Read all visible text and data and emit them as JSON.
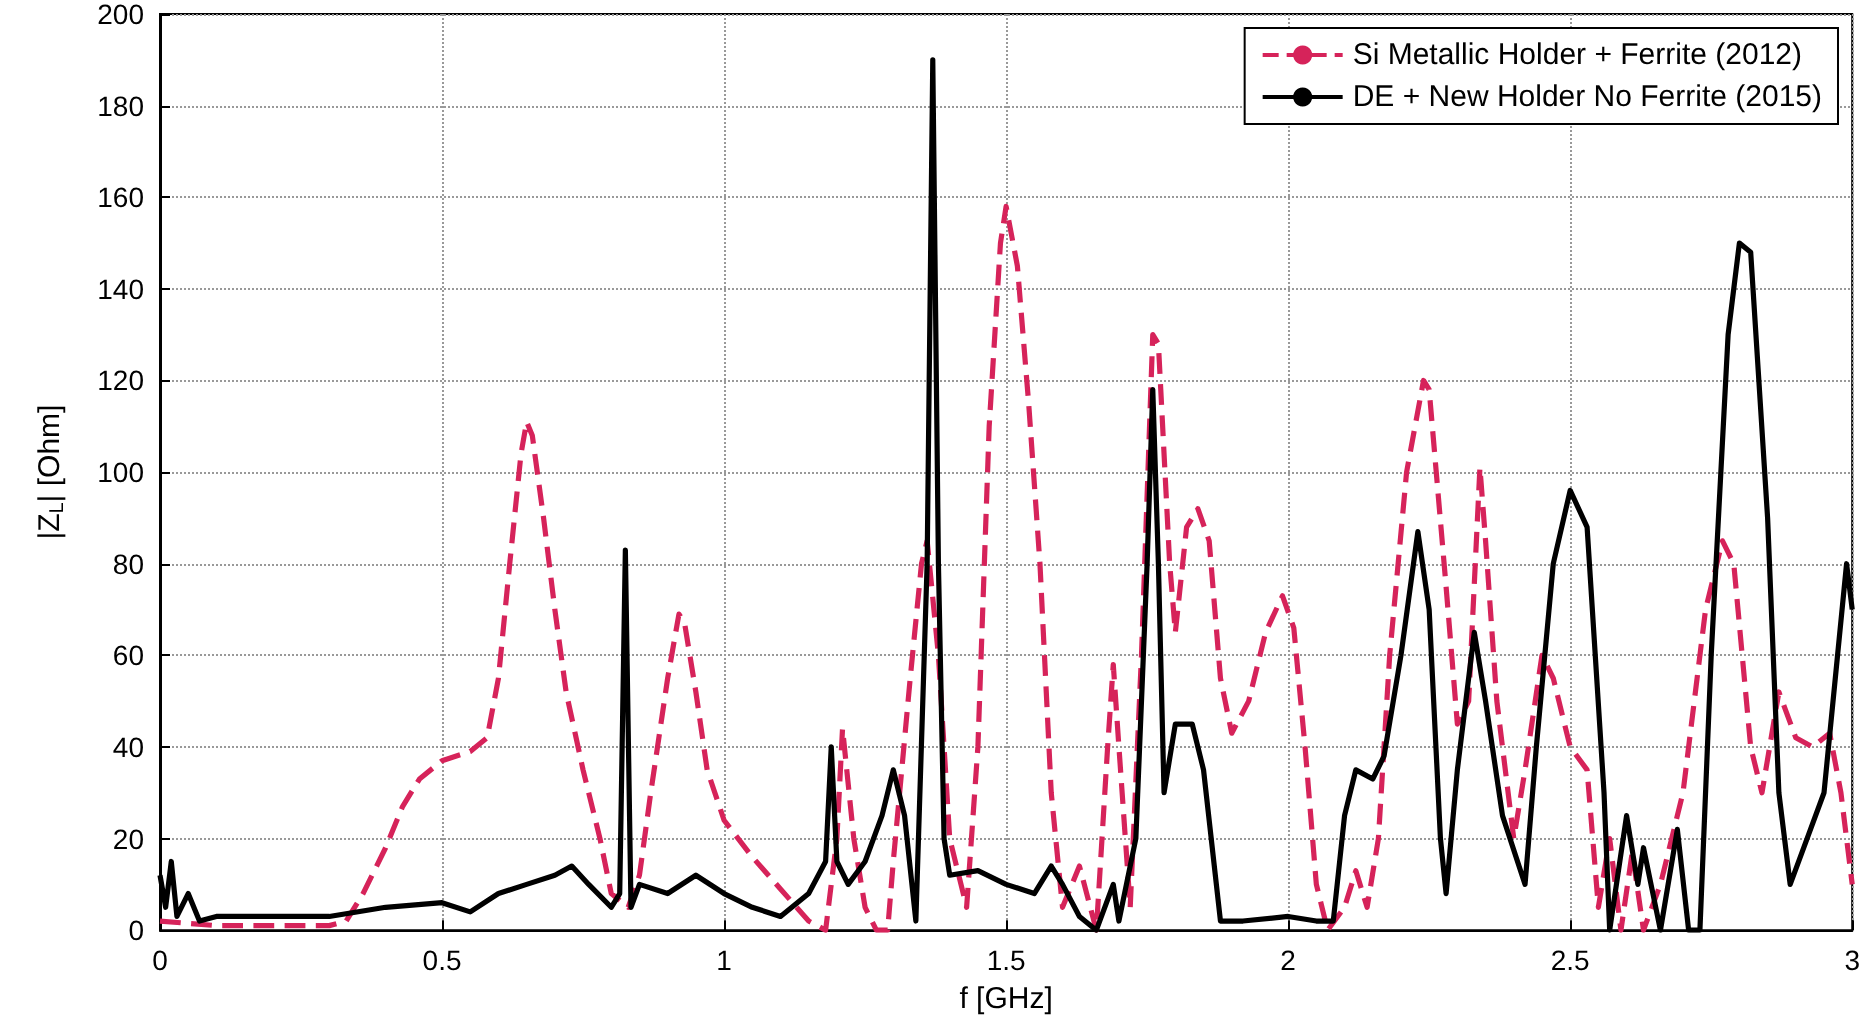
{
  "chart_data": {
    "type": "line",
    "xlabel": "f [GHz]",
    "ylabel": "|Z$_{L}$| [Ohm]",
    "xlim": [
      0,
      3
    ],
    "xticks": [
      0,
      0.5,
      1,
      1.5,
      2,
      2.5,
      3
    ],
    "ylim": [
      0,
      200
    ],
    "yticks": [
      0,
      20,
      40,
      60,
      80,
      100,
      120,
      140,
      160,
      180,
      200
    ],
    "grid": true,
    "legend": "top right",
    "marker": "none",
    "series": [
      {
        "name": "Si Metallic Holder + Ferrite (2012)",
        "color": "#d6235a",
        "line_style": "dashed",
        "x": [
          0,
          0.1,
          0.2,
          0.3,
          0.33,
          0.36,
          0.4,
          0.43,
          0.46,
          0.5,
          0.55,
          0.58,
          0.6,
          0.62,
          0.64,
          0.65,
          0.66,
          0.68,
          0.7,
          0.72,
          0.75,
          0.78,
          0.8,
          0.83,
          0.85,
          0.87,
          0.9,
          0.92,
          0.93,
          0.95,
          0.97,
          1.0,
          1.05,
          1.1,
          1.15,
          1.18,
          1.2,
          1.21,
          1.23,
          1.25,
          1.27,
          1.29,
          1.3,
          1.33,
          1.35,
          1.36,
          1.38,
          1.4,
          1.43,
          1.45,
          1.47,
          1.49,
          1.5,
          1.52,
          1.54,
          1.56,
          1.58,
          1.6,
          1.63,
          1.66,
          1.68,
          1.69,
          1.7,
          1.72,
          1.74,
          1.76,
          1.77,
          1.79,
          1.8,
          1.82,
          1.84,
          1.86,
          1.88,
          1.9,
          1.93,
          1.96,
          1.99,
          2.01,
          2.03,
          2.05,
          2.07,
          2.1,
          2.12,
          2.14,
          2.16,
          2.18,
          2.21,
          2.24,
          2.25,
          2.28,
          2.3,
          2.32,
          2.34,
          2.35,
          2.37,
          2.4,
          2.42,
          2.45,
          2.47,
          2.5,
          2.53,
          2.55,
          2.57,
          2.59,
          2.61,
          2.63,
          2.66,
          2.7,
          2.74,
          2.77,
          2.79,
          2.82,
          2.84,
          2.87,
          2.9,
          2.93,
          2.96,
          2.98,
          3.0
        ],
        "values": [
          2,
          1,
          1,
          1,
          2,
          8,
          18,
          27,
          33,
          37,
          39,
          42,
          55,
          80,
          104,
          111,
          108,
          90,
          70,
          52,
          35,
          20,
          8,
          5,
          12,
          30,
          55,
          69,
          67,
          52,
          35,
          24,
          16,
          9,
          2,
          0,
          20,
          44,
          20,
          5,
          0,
          0,
          15,
          55,
          80,
          85,
          60,
          20,
          5,
          40,
          110,
          150,
          158,
          145,
          115,
          80,
          30,
          5,
          14,
          0,
          40,
          58,
          40,
          5,
          60,
          130,
          128,
          80,
          65,
          88,
          92,
          85,
          55,
          43,
          50,
          65,
          73,
          66,
          40,
          10,
          0,
          5,
          13,
          5,
          20,
          60,
          100,
          120,
          118,
          75,
          45,
          50,
          101,
          85,
          50,
          20,
          35,
          60,
          55,
          40,
          35,
          5,
          20,
          0,
          17,
          0,
          10,
          30,
          70,
          85,
          80,
          40,
          30,
          52,
          42,
          40,
          43,
          30,
          10
        ]
      },
      {
        "name": "DE + New Holder No Ferrite (2015)",
        "color": "#000000",
        "line_style": "solid",
        "x": [
          0,
          0.01,
          0.02,
          0.03,
          0.05,
          0.07,
          0.1,
          0.2,
          0.3,
          0.4,
          0.5,
          0.55,
          0.6,
          0.65,
          0.7,
          0.73,
          0.76,
          0.8,
          0.815,
          0.825,
          0.835,
          0.85,
          0.9,
          0.95,
          1.0,
          1.05,
          1.1,
          1.15,
          1.18,
          1.19,
          1.2,
          1.22,
          1.25,
          1.28,
          1.3,
          1.32,
          1.34,
          1.36,
          1.37,
          1.38,
          1.39,
          1.4,
          1.45,
          1.5,
          1.55,
          1.58,
          1.6,
          1.63,
          1.66,
          1.69,
          1.7,
          1.73,
          1.75,
          1.76,
          1.77,
          1.78,
          1.8,
          1.83,
          1.85,
          1.88,
          1.92,
          2.0,
          2.05,
          2.08,
          2.1,
          2.12,
          2.15,
          2.17,
          2.2,
          2.23,
          2.25,
          2.27,
          2.28,
          2.3,
          2.33,
          2.35,
          2.38,
          2.42,
          2.44,
          2.47,
          2.5,
          2.53,
          2.56,
          2.57,
          2.6,
          2.62,
          2.63,
          2.66,
          2.69,
          2.71,
          2.73,
          2.75,
          2.78,
          2.8,
          2.82,
          2.85,
          2.87,
          2.89,
          2.92,
          2.95,
          2.97,
          2.99,
          3.0
        ],
        "values": [
          12,
          5,
          15,
          3,
          8,
          2,
          3,
          3,
          3,
          5,
          6,
          4,
          8,
          10,
          12,
          14,
          10,
          5,
          8,
          83,
          5,
          10,
          8,
          12,
          8,
          5,
          3,
          8,
          15,
          40,
          15,
          10,
          15,
          25,
          35,
          25,
          2,
          80,
          190,
          80,
          20,
          12,
          13,
          10,
          8,
          14,
          10,
          3,
          0,
          10,
          2,
          20,
          80,
          118,
          80,
          30,
          45,
          45,
          35,
          2,
          2,
          3,
          2,
          2,
          25,
          35,
          33,
          38,
          60,
          87,
          70,
          20,
          8,
          35,
          65,
          50,
          25,
          10,
          40,
          80,
          96,
          88,
          30,
          0,
          25,
          10,
          18,
          0,
          22,
          0,
          0,
          60,
          130,
          150,
          148,
          90,
          30,
          10,
          20,
          30,
          55,
          80,
          70
        ]
      }
    ]
  }
}
